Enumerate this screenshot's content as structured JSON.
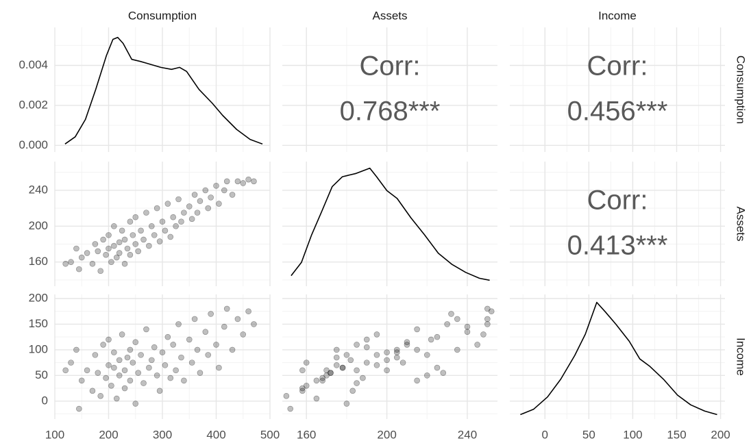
{
  "variables": [
    "Consumption",
    "Assets",
    "Income"
  ],
  "chart_data": [
    {
      "type": "line",
      "color": "#000000",
      "x": [
        119,
        138,
        157,
        176,
        196,
        208,
        217,
        227,
        243,
        259,
        272,
        297,
        317,
        332,
        345,
        368,
        393,
        412,
        438,
        463,
        486
      ],
      "values": [
        7e-05,
        0.00043,
        0.0013,
        0.0028,
        0.0045,
        0.0053,
        0.0054,
        0.0051,
        0.0043,
        0.0042,
        0.0041,
        0.0039,
        0.0038,
        0.0039,
        0.0037,
        0.0028,
        0.0021,
        0.0015,
        0.0008,
        0.0003,
        7e-05
      ],
      "xlim": [
        100,
        500
      ],
      "ylim": [
        -0.00033,
        0.0059
      ],
      "yticks": [
        {
          "value": 0,
          "label": "0.000"
        },
        {
          "value": 0.002,
          "label": "0.002"
        },
        {
          "value": 0.004,
          "label": "0.004"
        }
      ],
      "yminor": [
        0.001,
        0.003,
        0.005
      ]
    },
    {
      "type": "text",
      "label": "Corr:",
      "values": [
        0.768
      ],
      "value_labels": [
        "0.768***"
      ],
      "color": "#595959"
    },
    {
      "type": "text",
      "label": "Corr:",
      "values": [
        0.456
      ],
      "value_labels": [
        "0.456***"
      ],
      "color": "#595959"
    },
    {
      "type": "scatter",
      "color": "#000000",
      "opacity": 0.25,
      "x": [
        150,
        160,
        170,
        175,
        180,
        185,
        190,
        195,
        200,
        200,
        205,
        210,
        210,
        215,
        220,
        220,
        225,
        230,
        230,
        235,
        240,
        240,
        245,
        250,
        250,
        255,
        260,
        265,
        270,
        275,
        280,
        285,
        290,
        295,
        300,
        305,
        310,
        315,
        320,
        325,
        330,
        335,
        340,
        350,
        355,
        360,
        365,
        370,
        380,
        385,
        390,
        400,
        405,
        415,
        420,
        430,
        440,
        450,
        460,
        130,
        140,
        120,
        145,
        470
      ],
      "values": [
        165,
        170,
        158,
        180,
        172,
        150,
        185,
        168,
        175,
        190,
        160,
        178,
        200,
        165,
        182,
        170,
        195,
        158,
        185,
        175,
        205,
        168,
        190,
        180,
        210,
        172,
        195,
        185,
        215,
        178,
        200,
        190,
        220,
        183,
        205,
        195,
        225,
        188,
        210,
        200,
        230,
        205,
        215,
        222,
        208,
        235,
        215,
        228,
        240,
        220,
        232,
        245,
        225,
        240,
        250,
        235,
        250,
        248,
        252,
        160,
        175,
        158,
        152,
        250
      ],
      "xlim": [
        100,
        500
      ],
      "ylim": [
        133,
        272
      ],
      "yticks": [
        160,
        200,
        240
      ],
      "yminor": [
        140,
        180,
        220,
        260
      ]
    },
    {
      "type": "line",
      "color": "#000000",
      "x": [
        152.4,
        157.5,
        162.6,
        167.7,
        172.8,
        177.9,
        184.7,
        191.5,
        194.9,
        200.0,
        205.1,
        211.9,
        218.7,
        225.6,
        232.4,
        239.2,
        246.0,
        251.1
      ],
      "values": [
        0.0007,
        0.0027,
        0.0069,
        0.0105,
        0.0142,
        0.0157,
        0.0162,
        0.017,
        0.0157,
        0.0136,
        0.0124,
        0.0095,
        0.0069,
        0.0041,
        0.0024,
        0.0012,
        0.0003,
        0.0
      ],
      "xlim": [
        148,
        255
      ],
      "ylim": [
        -0.0009,
        0.018
      ]
    },
    {
      "type": "text",
      "label": "Corr:",
      "values": [
        0.413
      ],
      "value_labels": [
        "0.413***"
      ],
      "color": "#595959"
    },
    {
      "type": "scatter",
      "color": "#000000",
      "opacity": 0.25,
      "x": [
        150,
        160,
        170,
        175,
        180,
        185,
        190,
        195,
        200,
        200,
        205,
        210,
        210,
        215,
        220,
        220,
        225,
        230,
        230,
        235,
        240,
        240,
        245,
        250,
        250,
        255,
        260,
        265,
        270,
        275,
        280,
        285,
        290,
        295,
        300,
        305,
        310,
        315,
        320,
        325,
        330,
        335,
        340,
        350,
        355,
        360,
        365,
        370,
        380,
        385,
        390,
        400,
        405,
        415,
        420,
        430,
        440,
        450,
        460,
        130,
        140,
        120,
        145,
        470
      ],
      "values": [
        40,
        60,
        20,
        90,
        55,
        10,
        110,
        45,
        70,
        120,
        30,
        65,
        95,
        5,
        80,
        50,
        130,
        25,
        60,
        85,
        100,
        40,
        75,
        -5,
        115,
        55,
        90,
        35,
        140,
        65,
        80,
        105,
        50,
        20,
        95,
        70,
        125,
        45,
        110,
        60,
        150,
        85,
        40,
        120,
        75,
        160,
        100,
        55,
        135,
        90,
        170,
        110,
        65,
        145,
        180,
        100,
        160,
        130,
        175,
        75,
        100,
        60,
        -15,
        150
      ],
      "xlim": [
        100,
        500
      ],
      "ylim": [
        -35,
        208
      ],
      "xticks": [
        100,
        200,
        300,
        400,
        500
      ],
      "xminor": [
        150,
        250,
        350,
        450
      ],
      "yticks": [
        0,
        50,
        100,
        150,
        200
      ],
      "yminor": [
        -25,
        25,
        75,
        125,
        175
      ]
    },
    {
      "type": "scatter",
      "color": "#000000",
      "opacity": 0.25,
      "x": [
        165,
        170,
        158,
        180,
        172,
        150,
        185,
        168,
        175,
        190,
        160,
        178,
        200,
        165,
        182,
        170,
        195,
        158,
        185,
        175,
        205,
        168,
        190,
        180,
        210,
        172,
        195,
        185,
        215,
        178,
        200,
        190,
        220,
        183,
        205,
        195,
        225,
        188,
        210,
        200,
        230,
        205,
        215,
        222,
        208,
        235,
        215,
        228,
        240,
        220,
        232,
        245,
        225,
        240,
        250,
        235,
        250,
        248,
        252,
        160,
        175,
        158,
        152,
        250
      ],
      "values": [
        40,
        60,
        20,
        90,
        55,
        10,
        110,
        45,
        70,
        120,
        30,
        65,
        95,
        5,
        80,
        50,
        130,
        25,
        60,
        85,
        100,
        40,
        75,
        -5,
        115,
        55,
        90,
        35,
        140,
        65,
        80,
        105,
        50,
        20,
        95,
        70,
        125,
        45,
        110,
        60,
        150,
        85,
        40,
        120,
        75,
        160,
        100,
        55,
        135,
        90,
        170,
        110,
        65,
        145,
        180,
        100,
        160,
        130,
        175,
        75,
        100,
        60,
        -15,
        150
      ],
      "xlim": [
        148,
        255
      ],
      "ylim": [
        -35,
        208
      ],
      "xticks": [
        160,
        200,
        240
      ],
      "xminor": [
        180,
        220
      ]
    },
    {
      "type": "line",
      "color": "#000000",
      "x": [
        -28,
        -13,
        3,
        18,
        34,
        46,
        59,
        69,
        81,
        96,
        108,
        119,
        135,
        151,
        166,
        182,
        196
      ],
      "values": [
        0.0,
        0.0006,
        0.002,
        0.004,
        0.0067,
        0.0091,
        0.0127,
        0.0116,
        0.0102,
        0.0083,
        0.0063,
        0.0055,
        0.004,
        0.0022,
        0.0011,
        0.0004,
        0.0
      ],
      "xlim": [
        -40,
        205
      ],
      "ylim": [
        -0.0005,
        0.0136
      ],
      "xticks": [
        0,
        50,
        100,
        150,
        200
      ],
      "xminor": [
        -25,
        25,
        75,
        125,
        175
      ]
    }
  ]
}
